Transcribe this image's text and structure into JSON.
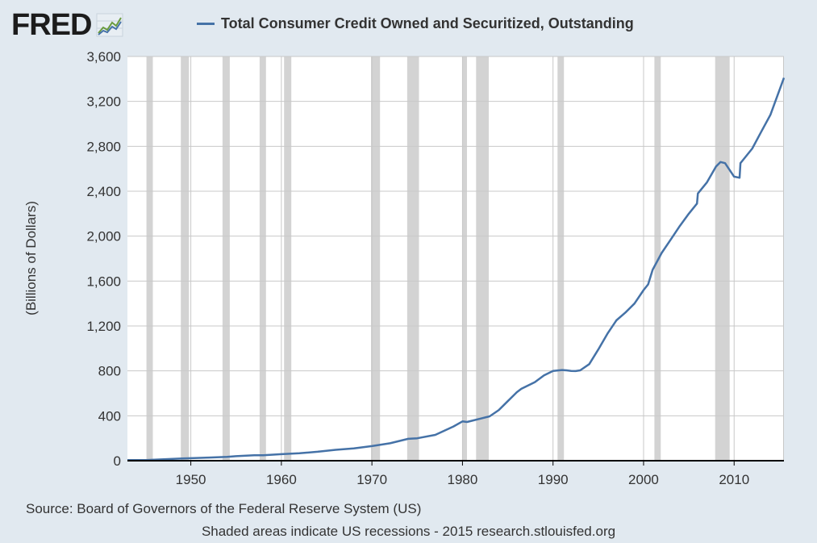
{
  "logo": {
    "text": "FRED"
  },
  "chart_data": {
    "type": "line",
    "legend": "Total Consumer Credit Owned and Securitized, Outstanding",
    "ylabel": "(Billions of Dollars)",
    "xlabel": "",
    "xlim": [
      1943,
      2015.5
    ],
    "ylim": [
      0,
      3600
    ],
    "x_ticks": [
      1950,
      1960,
      1970,
      1980,
      1990,
      2000,
      2010
    ],
    "y_ticks": [
      0,
      400,
      800,
      1200,
      1600,
      2000,
      2400,
      2800,
      3200,
      3600
    ],
    "y_tick_labels": [
      "0",
      "400",
      "800",
      "1,200",
      "1,600",
      "2,000",
      "2,400",
      "2,800",
      "3,200",
      "3,600"
    ],
    "grid": true,
    "line_color": "#4572a7",
    "recession_color": "#d3d3d3",
    "recessions": [
      [
        1945.1,
        1945.8
      ],
      [
        1948.9,
        1949.8
      ],
      [
        1953.5,
        1954.3
      ],
      [
        1957.6,
        1958.3
      ],
      [
        1960.3,
        1961.1
      ],
      [
        1969.9,
        1970.9
      ],
      [
        1973.9,
        1975.2
      ],
      [
        1980.0,
        1980.5
      ],
      [
        1981.5,
        1982.9
      ],
      [
        1990.5,
        1991.2
      ],
      [
        2001.2,
        2001.9
      ],
      [
        2007.9,
        2009.5
      ]
    ],
    "series": [
      {
        "x": [
          1943,
          1945,
          1947,
          1949,
          1950,
          1952,
          1954,
          1955,
          1957,
          1958,
          1960,
          1962,
          1964,
          1966,
          1968,
          1970,
          1972,
          1974,
          1975,
          1977,
          1979,
          1980,
          1980.5,
          1981,
          1982,
          1983,
          1984,
          1985,
          1986,
          1986.5,
          1987,
          1988,
          1989,
          1990,
          1991,
          1991.5,
          1992,
          1992.5,
          1993,
          1994,
          1995,
          1996,
          1997,
          1998,
          1999,
          2000,
          2000.5,
          2001,
          2002,
          2003,
          2004,
          2005,
          2005.9,
          2006,
          2007,
          2008,
          2008.5,
          2009,
          2009.5,
          2010,
          2010.6,
          2010.7,
          2011,
          2012,
          2013,
          2014,
          2015,
          2015.5
        ],
        "y": [
          5,
          6,
          12,
          20,
          22,
          28,
          34,
          40,
          48,
          48,
          58,
          66,
          80,
          97,
          110,
          130,
          155,
          195,
          200,
          230,
          305,
          350,
          345,
          355,
          375,
          395,
          450,
          530,
          610,
          640,
          660,
          700,
          760,
          800,
          808,
          805,
          800,
          798,
          805,
          860,
          990,
          1130,
          1250,
          1320,
          1400,
          1520,
          1570,
          1700,
          1850,
          1970,
          2090,
          2200,
          2290,
          2380,
          2480,
          2620,
          2660,
          2650,
          2590,
          2530,
          2520,
          2650,
          2680,
          2780,
          2930,
          3080,
          3300,
          3410
        ]
      }
    ]
  },
  "source_note": "Source: Board of Governors of the Federal Reserve System (US)",
  "footer_note": "Shaded areas indicate US recessions - 2015 research.stlouisfed.org"
}
